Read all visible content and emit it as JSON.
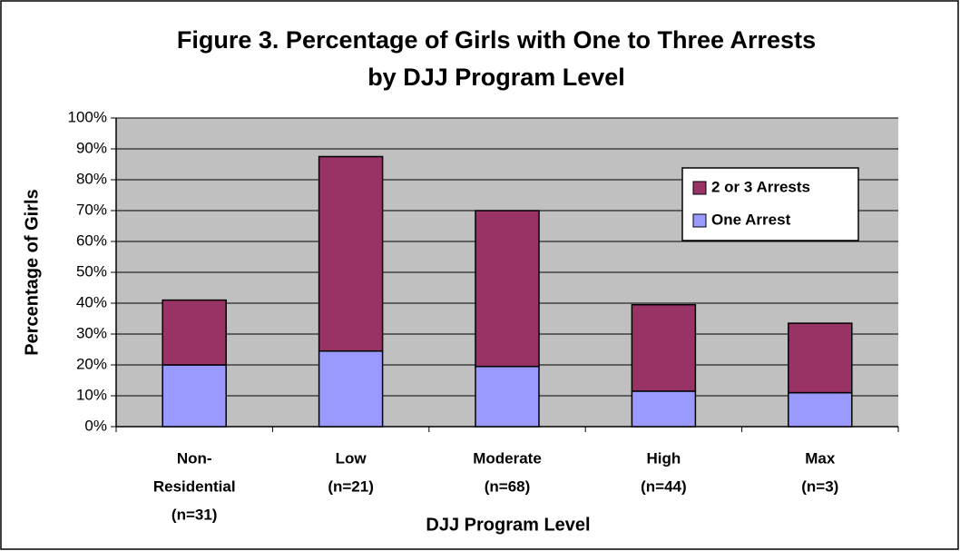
{
  "chart_data": {
    "type": "stacked_bar",
    "title": [
      "Figure 3. Percentage of Girls with One to Three Arrests",
      "by DJJ Program Level"
    ],
    "x_label": "DJJ Program Level",
    "y_label": "Percentage of Girls",
    "categories": [
      [
        "Non-",
        "Residential",
        "(n=31)"
      ],
      [
        "Low",
        "(n=21)"
      ],
      [
        "Moderate",
        "(n=68)"
      ],
      [
        "High",
        "(n=44)"
      ],
      [
        "Max",
        "(n=3)"
      ]
    ],
    "series": [
      {
        "name": "One Arrest",
        "color": "#9999ff",
        "values": [
          20,
          24.5,
          19.5,
          11.5,
          11
        ]
      },
      {
        "name": "2 or 3 Arrests",
        "color": "#993366",
        "values": [
          21,
          63,
          50.5,
          28,
          22.5
        ]
      }
    ],
    "ylim": [
      0,
      100
    ],
    "yticks": [
      {
        "value": 0,
        "label": "0%"
      },
      {
        "value": 10,
        "label": "10%"
      },
      {
        "value": 20,
        "label": "20%"
      },
      {
        "value": 30,
        "label": "30%"
      },
      {
        "value": 40,
        "label": "40%"
      },
      {
        "value": 50,
        "label": "50%"
      },
      {
        "value": 60,
        "label": "60%"
      },
      {
        "value": 70,
        "label": "70%"
      },
      {
        "value": 80,
        "label": "80%"
      },
      {
        "value": 90,
        "label": "90%"
      },
      {
        "value": 100,
        "label": "100%"
      }
    ],
    "grid": true,
    "legend": "upper right"
  }
}
